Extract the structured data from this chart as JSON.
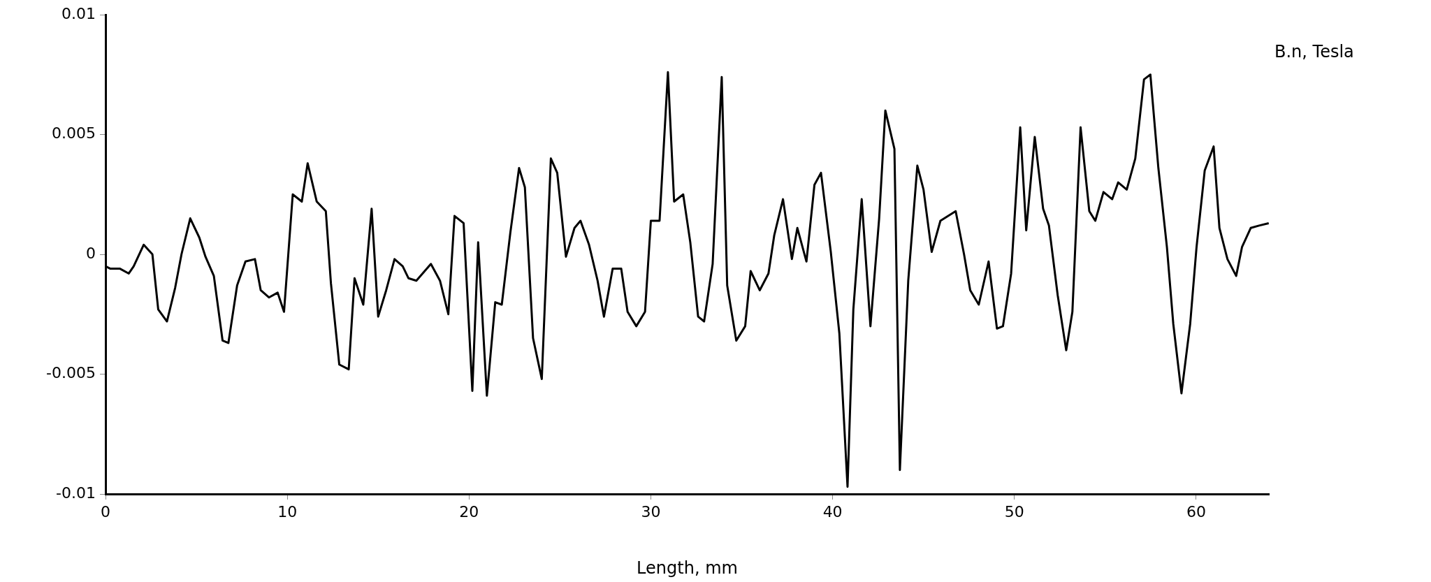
{
  "chart_data": {
    "type": "line",
    "xlabel": "Length, mm",
    "ylabel": "B.n, Tesla",
    "x": [
      0,
      0.27,
      0.8,
      1.28,
      1.55,
      2.1,
      2.58,
      2.9,
      3.38,
      3.83,
      4.18,
      4.66,
      5.16,
      5.5,
      5.96,
      6.44,
      6.76,
      7.24,
      7.7,
      8.22,
      8.54,
      8.99,
      9.47,
      9.82,
      10.3,
      10.8,
      11.12,
      11.62,
      12.12,
      12.4,
      12.86,
      13.38,
      13.7,
      14.18,
      14.64,
      15.0,
      15.44,
      15.9,
      16.35,
      16.67,
      17.1,
      17.9,
      18.4,
      18.86,
      19.2,
      19.7,
      20.18,
      20.5,
      20.98,
      21.44,
      21.8,
      22.27,
      22.75,
      23.07,
      23.52,
      24.0,
      24.5,
      24.85,
      25.33,
      25.8,
      26.13,
      26.6,
      27.07,
      27.42,
      27.9,
      28.37,
      28.72,
      29.2,
      29.68,
      30.0,
      30.48,
      30.94,
      31.28,
      31.78,
      32.17,
      32.6,
      32.93,
      33.4,
      33.9,
      34.2,
      34.7,
      35.19,
      35.49,
      35.99,
      36.47,
      36.79,
      37.27,
      37.76,
      38.06,
      38.56,
      39.0,
      39.36,
      39.9,
      40.37,
      40.82,
      41.14,
      41.6,
      42.08,
      42.56,
      42.9,
      43.4,
      43.7,
      44.16,
      44.66,
      45.0,
      45.45,
      45.93,
      46.77,
      47.23,
      47.57,
      48.04,
      48.58,
      49.04,
      49.37,
      49.82,
      50.32,
      50.65,
      51.12,
      51.58,
      51.9,
      52.38,
      52.85,
      53.19,
      53.64,
      54.12,
      54.45,
      54.9,
      55.38,
      55.71,
      56.18,
      56.65,
      57.13,
      57.48,
      57.92,
      58.39,
      58.74,
      59.19,
      59.67,
      60.02,
      60.47,
      60.96,
      61.28,
      61.72,
      62.2,
      62.52,
      63.0,
      63.46,
      63.99
    ],
    "series": [
      {
        "color": "#000000",
        "values": [
          -0.0005,
          -0.0006,
          -0.0006,
          -0.0008,
          -0.0005,
          0.0004,
          0.0,
          -0.0023,
          -0.0028,
          -0.0014,
          0.0,
          0.0015,
          0.0007,
          -0.0001,
          -0.0009,
          -0.0036,
          -0.0037,
          -0.0013,
          -0.0003,
          -0.0002,
          -0.0015,
          -0.0018,
          -0.0016,
          -0.0024,
          0.0025,
          0.0022,
          0.0038,
          0.0022,
          0.0018,
          -0.0012,
          -0.0046,
          -0.0048,
          -0.001,
          -0.0021,
          0.0019,
          -0.0026,
          -0.0015,
          -0.0002,
          -0.0005,
          -0.001,
          -0.0011,
          -0.0004,
          -0.0011,
          -0.0025,
          0.0016,
          0.0013,
          -0.0057,
          0.0005,
          -0.0059,
          -0.002,
          -0.0021,
          0.0009,
          0.0036,
          0.0028,
          -0.0035,
          -0.0052,
          0.004,
          0.0034,
          -0.0001,
          0.0011,
          0.0014,
          0.0004,
          -0.0011,
          -0.0026,
          -0.0006,
          -0.0006,
          -0.0024,
          -0.003,
          -0.0024,
          0.0014,
          0.0014,
          0.0076,
          0.0022,
          0.0025,
          0.0005,
          -0.0026,
          -0.0028,
          -0.0004,
          0.0074,
          -0.0013,
          -0.0036,
          -0.003,
          -0.0007,
          -0.0015,
          -0.0008,
          0.0008,
          0.0023,
          -0.0002,
          0.0011,
          -0.0003,
          0.0029,
          0.0034,
          0.0001,
          -0.0033,
          -0.0097,
          -0.0023,
          0.0023,
          -0.003,
          0.0015,
          0.006,
          0.0044,
          -0.009,
          -0.0011,
          0.0037,
          0.0027,
          0.0001,
          0.0014,
          0.0018,
          0.0,
          -0.0015,
          -0.0021,
          -0.0003,
          -0.0031,
          -0.003,
          -0.0008,
          0.0053,
          0.001,
          0.0049,
          0.0019,
          0.0012,
          -0.0017,
          -0.004,
          -0.0024,
          0.0053,
          0.0018,
          0.0014,
          0.0026,
          0.0023,
          0.003,
          0.0027,
          0.004,
          0.0073,
          0.0075,
          0.0036,
          0.0003,
          -0.0029,
          -0.0058,
          -0.0029,
          0.0003,
          0.0035,
          0.0045,
          0.0011,
          -0.0002,
          -0.0009,
          0.0003,
          0.0011,
          0.0012,
          0.0013
        ]
      }
    ],
    "xlim": [
      0,
      64
    ],
    "ylim": [
      -0.01,
      0.01
    ],
    "xticks": [
      0,
      10,
      20,
      30,
      40,
      50,
      60
    ],
    "yticks": [
      0.01,
      0.005,
      0,
      -0.005,
      -0.01
    ],
    "marker": "none",
    "line_style": "solid"
  }
}
